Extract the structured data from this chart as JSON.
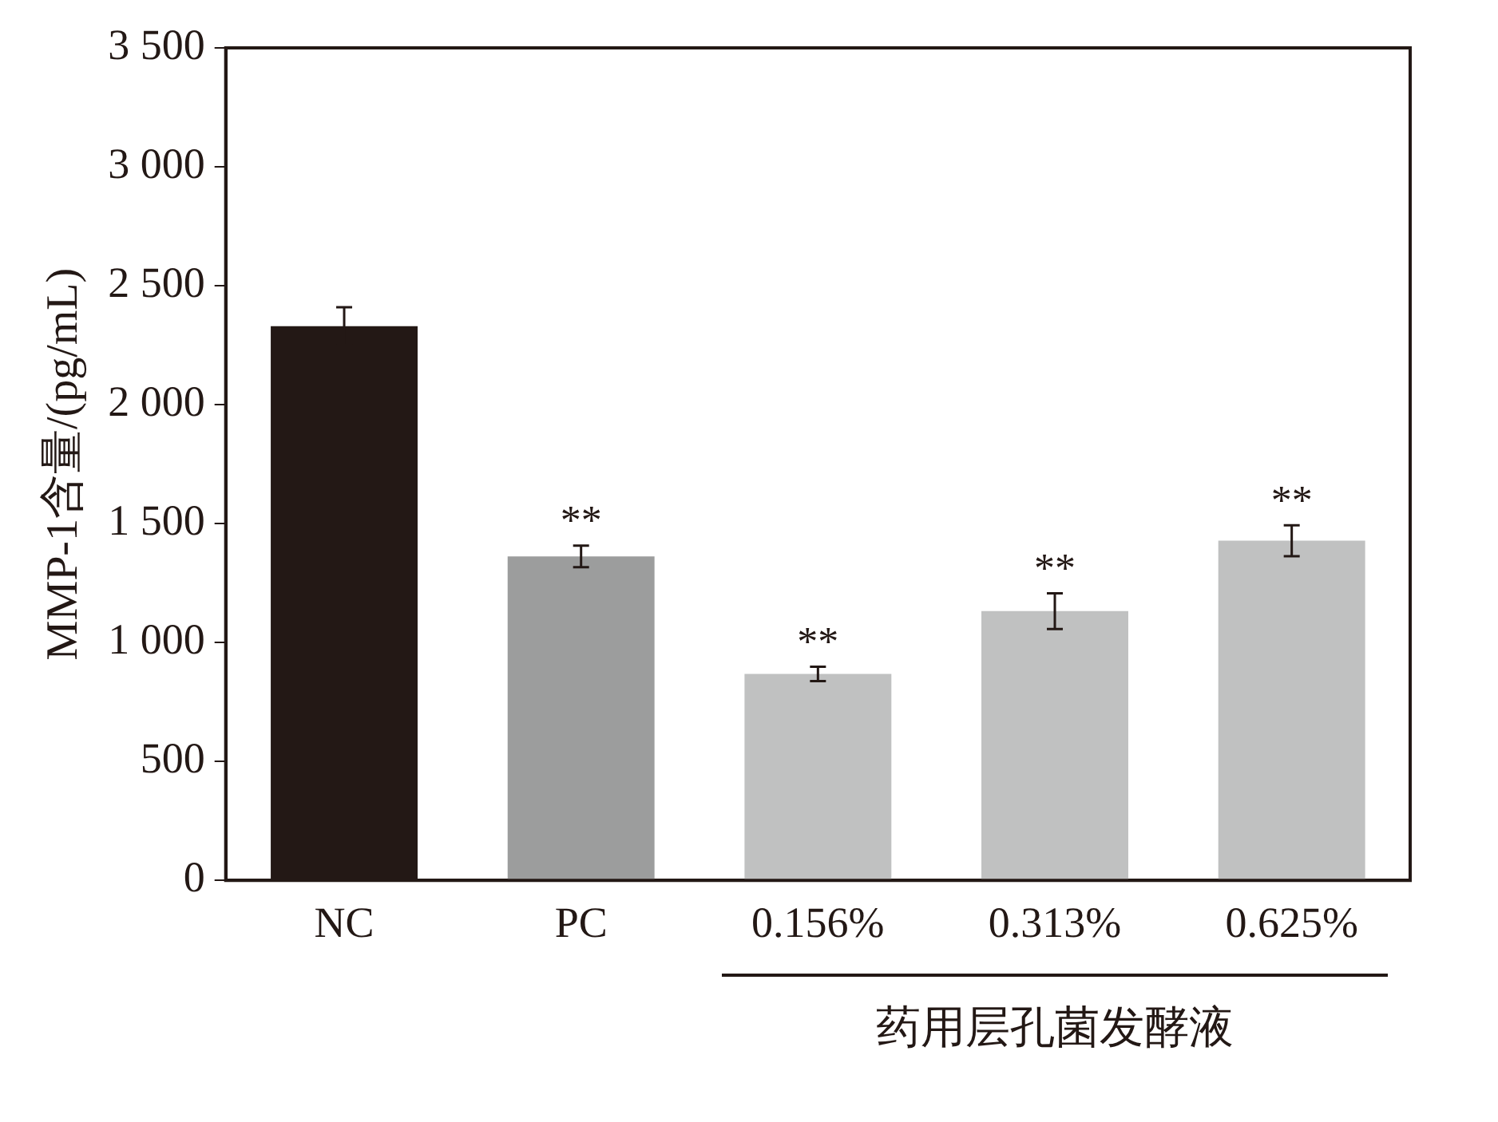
{
  "chart_data": {
    "type": "bar",
    "ylabel": "MMP-1含量/(pg/mL)",
    "xlabel": "药用层孔菌发酵液",
    "categories": [
      "NC",
      "PC",
      "0.156%",
      "0.313%",
      "0.625%"
    ],
    "values": [
      2330,
      1362,
      868,
      1132,
      1428
    ],
    "errors": [
      80,
      45,
      30,
      75,
      65
    ],
    "colors": [
      "#231815",
      "#9c9d9d",
      "#c0c1c1",
      "#c0c1c1",
      "#c0c1c1"
    ],
    "ylim": [
      0,
      3500
    ],
    "yticks": [
      {
        "value": 0,
        "label": "0"
      },
      {
        "value": 500,
        "label": "500"
      },
      {
        "value": 1000,
        "label": "1 000"
      },
      {
        "value": 1500,
        "label": "1 500"
      },
      {
        "value": 2000,
        "label": "2 000"
      },
      {
        "value": 2500,
        "label": "2 500"
      },
      {
        "value": 3000,
        "label": "3 000"
      },
      {
        "value": 3500,
        "label": "3 500"
      }
    ],
    "value_labels": [
      null,
      "**",
      "**",
      "**",
      "**"
    ],
    "grid": false,
    "legend": false
  }
}
